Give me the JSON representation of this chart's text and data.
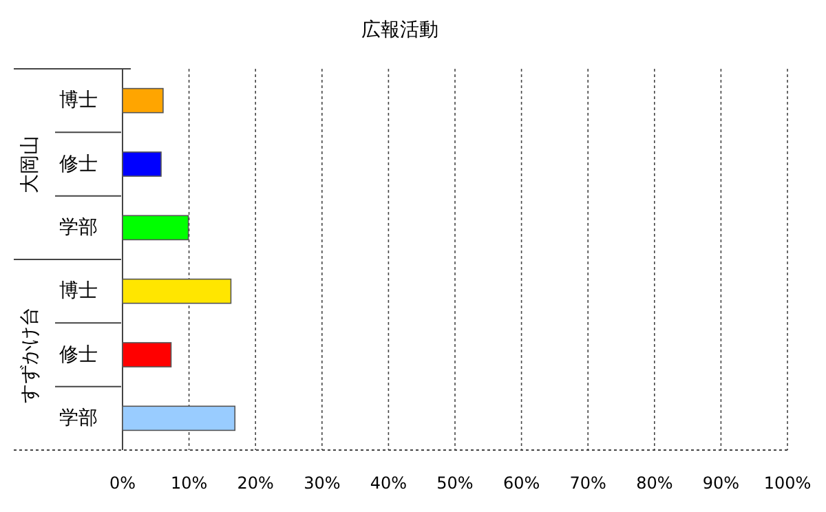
{
  "chart_data": {
    "type": "bar",
    "orientation": "horizontal",
    "title": "広報活動",
    "categories": [
      "博士",
      "修士",
      "学部",
      "博士",
      "修士",
      "学部"
    ],
    "values": [
      6.1,
      5.8,
      9.9,
      16.3,
      7.3,
      16.9
    ],
    "colors": [
      "#ffa500",
      "#0000ff",
      "#00ff00",
      "#ffe600",
      "#ff0000",
      "#99ccff"
    ],
    "xlim": [
      0,
      100
    ],
    "xticks": [
      {
        "value": 0,
        "label": "0%"
      },
      {
        "value": 10,
        "label": "10%"
      },
      {
        "value": 20,
        "label": "20%"
      },
      {
        "value": 30,
        "label": "30%"
      },
      {
        "value": 40,
        "label": "40%"
      },
      {
        "value": 50,
        "label": "50%"
      },
      {
        "value": 60,
        "label": "60%"
      },
      {
        "value": 70,
        "label": "70%"
      },
      {
        "value": 80,
        "label": "80%"
      },
      {
        "value": 90,
        "label": "90%"
      },
      {
        "value": 100,
        "label": "100%"
      }
    ],
    "annotations": [
      "大岡山",
      "すずかけ台"
    ],
    "grid": "x"
  }
}
